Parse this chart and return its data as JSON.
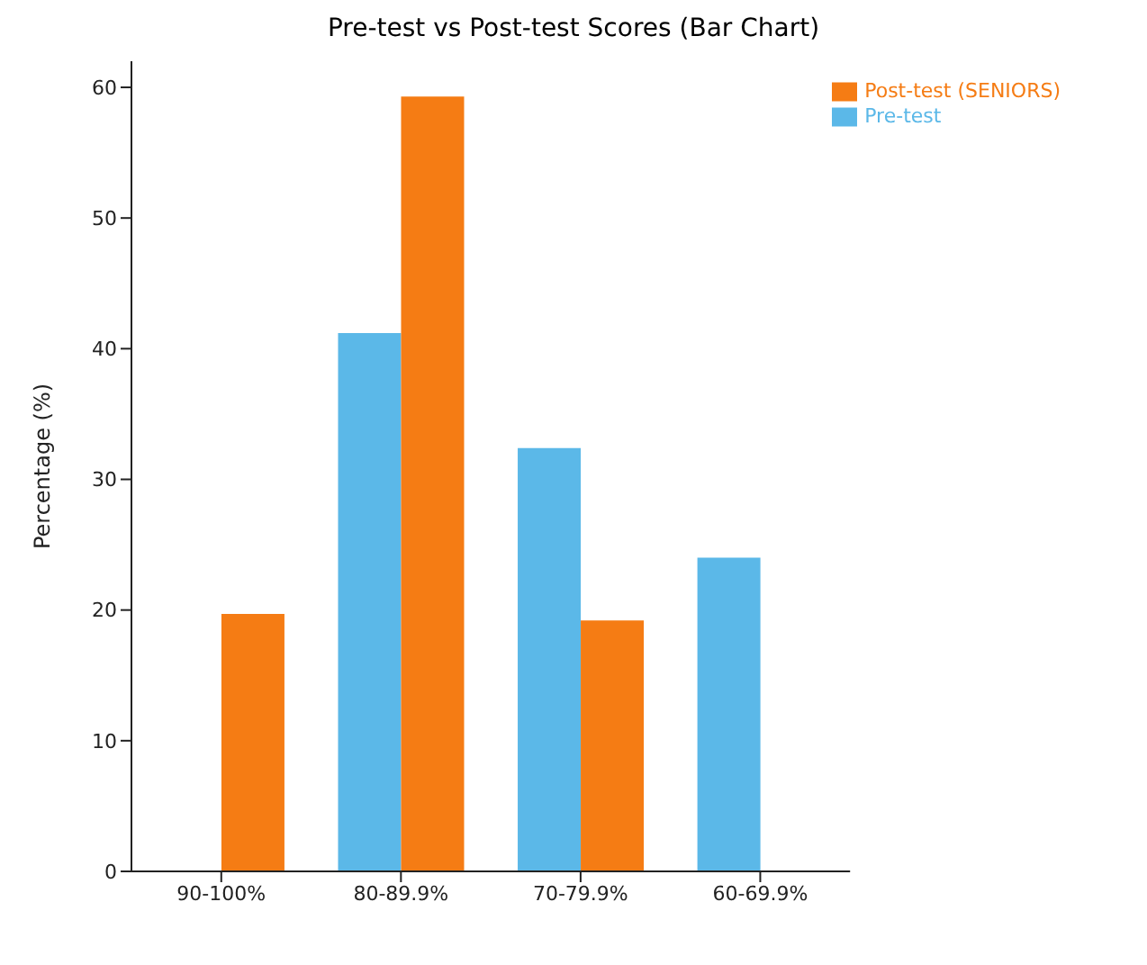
{
  "chart_data": {
    "type": "bar",
    "title": "Pre-test vs Post-test Scores (Bar Chart)",
    "ylabel": "Percentage (%)",
    "categories": [
      "90-100%",
      "80-89.9%",
      "70-79.9%",
      "60-69.9%"
    ],
    "series": [
      {
        "name": "Pre-test",
        "color": "#5bb8e8",
        "values": [
          0,
          41.2,
          32.4,
          24.0
        ]
      },
      {
        "name": "Post-test (SENIORS)",
        "color": "#f57c14",
        "values": [
          19.7,
          59.3,
          19.2,
          0
        ]
      }
    ],
    "ylim": [
      0,
      62
    ],
    "yticks": [
      0,
      10,
      20,
      30,
      40,
      50,
      60
    ],
    "legend": "top right",
    "grid": false
  }
}
